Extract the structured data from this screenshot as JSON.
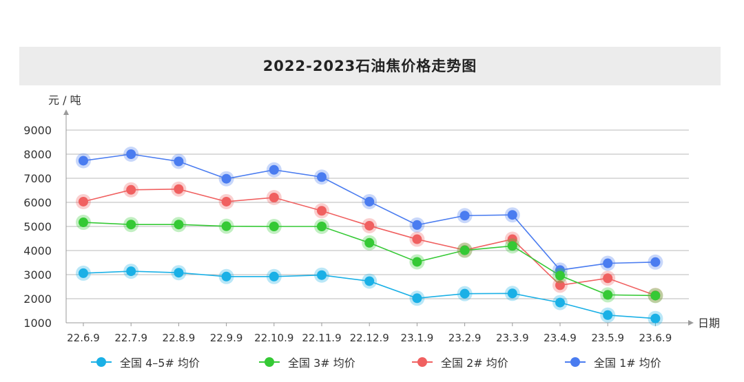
{
  "title": "2022-2023石油焦价格走势图",
  "chart_data": {
    "type": "line",
    "title": "2022-2023石油焦价格走势图",
    "ylabel": "元 / 吨",
    "xlabel": "日期",
    "ylim": [
      1000,
      9000
    ],
    "yticks": [
      1000,
      2000,
      3000,
      4000,
      5000,
      6000,
      7000,
      8000,
      9000
    ],
    "grid": true,
    "legend_position": "bottom",
    "categories": [
      "22.6.9",
      "22.7.9",
      "22.8.9",
      "22.9.9",
      "22.10.9",
      "22.11.9",
      "22.12.9",
      "23.1.9",
      "23.2.9",
      "23.3.9",
      "23.4.9",
      "23.5.9",
      "23.6.9"
    ],
    "series": [
      {
        "name": "全国 1# 均价",
        "color": "#4a7cf0",
        "values": [
          7730,
          8000,
          7700,
          6980,
          7350,
          7050,
          6030,
          5060,
          5450,
          5480,
          3190,
          3470,
          3520
        ]
      },
      {
        "name": "全国 2# 均价",
        "color": "#f06060",
        "values": [
          6030,
          6520,
          6550,
          6030,
          6200,
          5650,
          5030,
          4470,
          4020,
          4470,
          2560,
          2850,
          2140
        ]
      },
      {
        "name": "全国 3# 均价",
        "color": "#35c935",
        "values": [
          5170,
          5080,
          5080,
          5010,
          5000,
          5000,
          4320,
          3530,
          4010,
          4190,
          2960,
          2160,
          2130
        ]
      },
      {
        "name": "全国 4–5# 均价",
        "color": "#1ab0e6",
        "values": [
          3060,
          3140,
          3080,
          2920,
          2920,
          2980,
          2730,
          2020,
          2210,
          2220,
          1840,
          1320,
          1180
        ]
      }
    ],
    "legend_order": [
      3,
      2,
      1,
      0
    ]
  }
}
